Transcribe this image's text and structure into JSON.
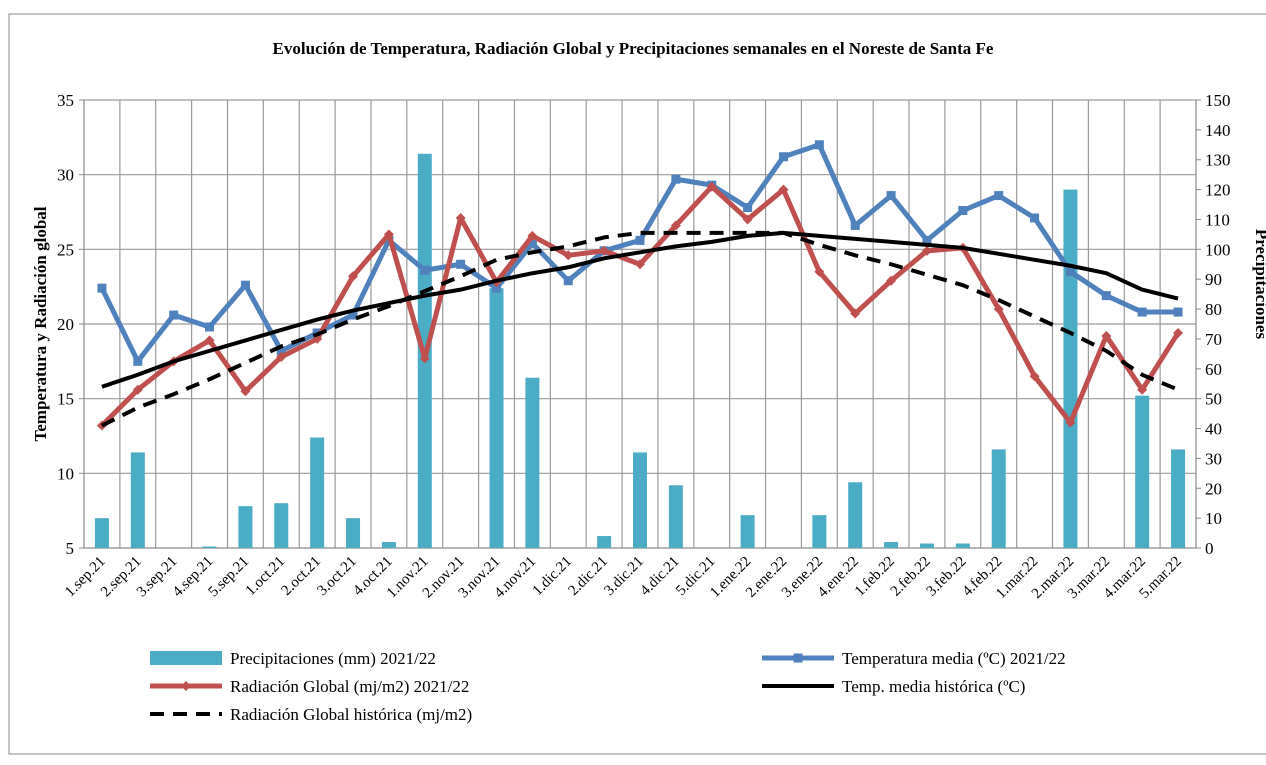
{
  "chart_data": {
    "type": "combo",
    "title": "Evolución de Temperatura, Radiación Global y Precipitaciones semanales en el Noreste de Santa Fe",
    "ylabel": "Temperatura y Radiación global",
    "y2label": "Precipitaciones",
    "categories": [
      "1.sep.21",
      "2.sep.21",
      "3.sep.21",
      "4.sep.21",
      "5.sep.21",
      "1.oct.21",
      "2.oct.21",
      "3.oct.21",
      "4.oct.21",
      "1.nov.21",
      "2.nov.21",
      "3.nov.21",
      "4.nov.21",
      "1.dic.21",
      "2.dic.21",
      "3.dic.21",
      "4.dic.21",
      "5.dic.21",
      "1.ene.22",
      "2.ene.22",
      "3.ene.22",
      "4.ene.22",
      "1.feb.22",
      "2.feb.22",
      "3.feb.22",
      "4.feb.22",
      "1.mar.22",
      "2.mar.22",
      "3.mar.22",
      "4.mar.22",
      "5.mar.22"
    ],
    "ylim": [
      5,
      35
    ],
    "yticks": [
      5,
      10,
      15,
      20,
      25,
      30,
      35
    ],
    "y2lim": [
      0,
      150
    ],
    "y2ticks": [
      0,
      10,
      20,
      30,
      40,
      50,
      60,
      70,
      80,
      90,
      100,
      110,
      120,
      130,
      140,
      150
    ],
    "grid": true,
    "legend": "bottom",
    "series": [
      {
        "name": "Precipitaciones (mm) 2021/22",
        "type": "bar",
        "axis": "y2",
        "color": "#4bacc6",
        "values": [
          10,
          32,
          0,
          0.5,
          14,
          15,
          37,
          10,
          2,
          132,
          0,
          87,
          57,
          0,
          4,
          32,
          21,
          0,
          11,
          0,
          11,
          22,
          2,
          1.5,
          1.5,
          33,
          0,
          120,
          0,
          51,
          33
        ]
      },
      {
        "name": "Temperatura media (ºC) 2021/22",
        "type": "line",
        "marker": "square",
        "color": "#4f81bd",
        "values": [
          22.4,
          17.5,
          20.6,
          19.8,
          22.6,
          18.2,
          19.4,
          20.6,
          25.6,
          23.6,
          24.0,
          22.4,
          25.4,
          22.9,
          24.9,
          25.6,
          29.7,
          29.3,
          27.8,
          31.2,
          32.0,
          26.6,
          28.6,
          25.6,
          27.6,
          28.6,
          27.1,
          23.5,
          21.9,
          20.8,
          20.8
        ]
      },
      {
        "name": "Radiación Global (mj/m2) 2021/22",
        "type": "line",
        "marker": "diamond",
        "color": "#c0504d",
        "values": [
          13.2,
          15.6,
          17.5,
          18.9,
          15.5,
          17.8,
          19.0,
          23.2,
          26.0,
          17.7,
          27.1,
          22.8,
          25.9,
          24.6,
          24.9,
          24.0,
          26.6,
          29.2,
          27.0,
          29.0,
          23.5,
          20.7,
          22.9,
          24.9,
          25.1,
          21.0,
          16.5,
          13.4,
          19.2,
          15.6,
          19.4
        ]
      },
      {
        "name": "Temp. media histórica (ºC)",
        "type": "line",
        "color": "#000000",
        "values": [
          15.8,
          16.6,
          17.5,
          18.2,
          18.9,
          19.6,
          20.3,
          20.9,
          21.4,
          21.9,
          22.3,
          22.9,
          23.4,
          23.8,
          24.4,
          24.8,
          25.2,
          25.5,
          25.9,
          26.1,
          25.9,
          25.7,
          25.5,
          25.3,
          25.1,
          24.7,
          24.3,
          23.9,
          23.4,
          22.3,
          21.7
        ]
      },
      {
        "name": "Radiación Global histórica (mj/m2)",
        "type": "line",
        "dashed": true,
        "color": "#000000",
        "values": [
          13.2,
          14.4,
          15.3,
          16.3,
          17.4,
          18.5,
          19.3,
          20.3,
          21.2,
          22.2,
          23.2,
          24.3,
          24.8,
          25.2,
          25.8,
          26.1,
          26.1,
          26.1,
          26.1,
          26.1,
          25.3,
          24.6,
          24.0,
          23.3,
          22.6,
          21.6,
          20.5,
          19.4,
          18.2,
          16.6,
          15.6
        ]
      }
    ]
  }
}
